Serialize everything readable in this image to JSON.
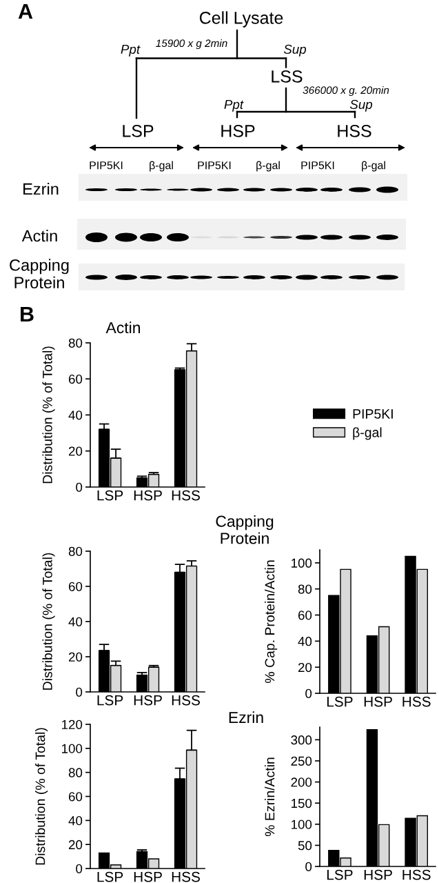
{
  "chart_data": [
    {
      "type": "other",
      "annotations": [
        "A",
        "Cell Lysate",
        "15900 x g 2min",
        "Ppt",
        "Sup",
        "LSS",
        "366000 x g. 20min",
        "Ppt",
        "Sup",
        "LSP",
        "HSP",
        "HSS",
        "PIP5KI",
        "β-gal",
        "PIP5KI",
        "β-gal",
        "PIP5KI",
        "β-gal",
        "Ezrin",
        "Actin",
        "Capping\nProtein"
      ]
    },
    {
      "type": "bar",
      "title": "Actin",
      "ylabel": "Distribution (% of Total)",
      "categories": [
        "LSP",
        "HSP",
        "HSS"
      ],
      "series": [
        {
          "name": "PIP5KI",
          "color": "#000000",
          "values": [
            32,
            5,
            65
          ],
          "errors": [
            [
              32,
              35
            ],
            [
              5,
              6
            ],
            [
              65,
              66
            ]
          ]
        },
        {
          "name": "β-gal",
          "color": "#d9d9d9",
          "values": [
            16,
            7,
            75.5
          ],
          "errors": [
            [
              16,
              21
            ],
            [
              7,
              8
            ],
            [
              75.5,
              79.5
            ]
          ]
        }
      ],
      "ylim": [
        0,
        80
      ],
      "yticks": [
        0,
        20,
        40,
        60,
        80
      ],
      "legend": "right",
      "annotations": [
        "B"
      ]
    },
    {
      "type": "other",
      "annotations": [
        "Capping\nProtein"
      ]
    },
    {
      "type": "bar",
      "ylabel": "Distribution (% of Total)",
      "categories": [
        "LSP",
        "HSP",
        "HSS"
      ],
      "series": [
        {
          "color": "#000000",
          "values": [
            23.5,
            9.5,
            68
          ],
          "errors": [
            [
              23.5,
              27
            ],
            [
              9.5,
              11
            ],
            [
              68,
              72.5
            ]
          ]
        },
        {
          "color": "#d9d9d9",
          "values": [
            15,
            14,
            71.5
          ],
          "errors": [
            [
              15,
              17.5
            ],
            [
              14,
              15
            ],
            [
              71.5,
              74.5
            ]
          ]
        }
      ],
      "ylim": [
        0,
        80
      ],
      "yticks": [
        0,
        20,
        40,
        60,
        80
      ]
    },
    {
      "type": "bar",
      "ylabel": "% Cap. Protein/Actin",
      "categories": [
        "LSP",
        "HSP",
        "HSS"
      ],
      "series": [
        {
          "color": "#000000",
          "values": [
            75,
            44,
            105
          ]
        },
        {
          "color": "#d9d9d9",
          "values": [
            95,
            51,
            95
          ]
        }
      ],
      "ylim": [
        0,
        110
      ],
      "yticks": [
        0,
        20,
        40,
        60,
        80,
        100
      ]
    },
    {
      "type": "other",
      "annotations": [
        "Ezrin"
      ]
    },
    {
      "type": "bar",
      "ylabel": "Distribution (% of Total)",
      "categories": [
        "LSP",
        "HSP",
        "HSS"
      ],
      "series": [
        {
          "color": "#000000",
          "values": [
            13,
            14,
            74.5
          ],
          "errors": [
            null,
            [
              14,
              15.5
            ],
            [
              74.5,
              83.5
            ]
          ]
        },
        {
          "color": "#d9d9d9",
          "values": [
            3,
            8,
            98.5
          ],
          "errors": [
            null,
            null,
            [
              98.5,
              115
            ]
          ]
        }
      ],
      "ylim": [
        0,
        120
      ],
      "yticks": [
        0,
        20,
        40,
        60,
        80,
        100,
        120
      ]
    },
    {
      "type": "bar",
      "ylabel": "% Ezrin/Actin",
      "categories": [
        "LSP",
        "HSP",
        "HSS"
      ],
      "series": [
        {
          "color": "#000000",
          "values": [
            38,
            324,
            114
          ]
        },
        {
          "color": "#d9d9d9",
          "values": [
            20,
            99,
            120
          ]
        }
      ],
      "ylim": [
        0,
        330
      ],
      "yticks": [
        0,
        50,
        100,
        150,
        200,
        250,
        300
      ]
    }
  ]
}
